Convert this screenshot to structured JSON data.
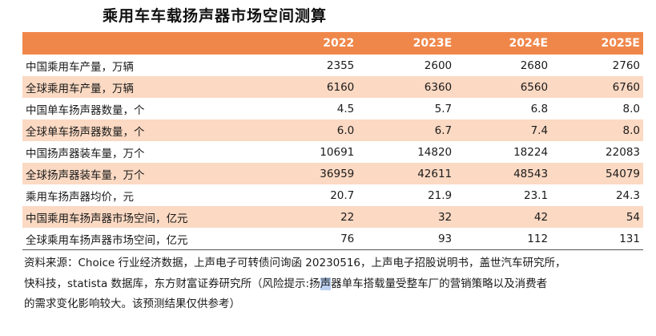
{
  "title": "乘用车车载扬声器市场空间测算",
  "header": [
    "",
    "2022",
    "2023E",
    "2024E",
    "2025E"
  ],
  "rows": [
    {
      "label": "中国乘用车产量，万辆",
      "values": [
        "2355",
        "2600",
        "2680",
        "2760"
      ],
      "shaded": false
    },
    {
      "label": "全球乘用车产量，万辆",
      "values": [
        "6160",
        "6360",
        "6560",
        "6760"
      ],
      "shaded": true
    },
    {
      "label": "中国单车扬声器数量，个",
      "values": [
        "4.5",
        "5.7",
        "6.8",
        "8.0"
      ],
      "shaded": false
    },
    {
      "label": "全球单车扬声器数量，个",
      "values": [
        "6.0",
        "6.7",
        "7.4",
        "8.0"
      ],
      "shaded": true
    },
    {
      "label": "中国扬声器装车量，万个",
      "values": [
        "10691",
        "14820",
        "18224",
        "22083"
      ],
      "shaded": false
    },
    {
      "label": "全球扬声器装车量，万个",
      "values": [
        "36959",
        "42611",
        "48543",
        "54079"
      ],
      "shaded": true
    },
    {
      "label": "乘用车扬声器均价，元",
      "values": [
        "20.7",
        "21.9",
        "23.1",
        "24.3"
      ],
      "shaded": false
    },
    {
      "label": "中国乘用车扬声器市场空间，亿元",
      "values": [
        "22",
        "32",
        "42",
        "54"
      ],
      "shaded": true
    },
    {
      "label": "全球乘用车扬声器市场空间，亿元",
      "values": [
        "76",
        "93",
        "112",
        "131"
      ],
      "shaded": false
    }
  ],
  "source": {
    "line1": "资料来源：Choice 行业经济数据，上声电子可转债问询函 20230516，上声电子招股说明书，盖世汽车研究所，",
    "line2_a": "快科技，statista 数据库，东方财富证券研究所（风险提示:扬",
    "line2_hl": "声",
    "line2_b": "器单车搭载量受整车厂的营销策略以及消费者",
    "line3": "的需求变化影响较大。该预测结果仅供参考）"
  },
  "colors": {
    "header_bg": "#f0874a",
    "shaded_row_bg": "#fbd9c3",
    "highlight": "#bcd2f2"
  }
}
